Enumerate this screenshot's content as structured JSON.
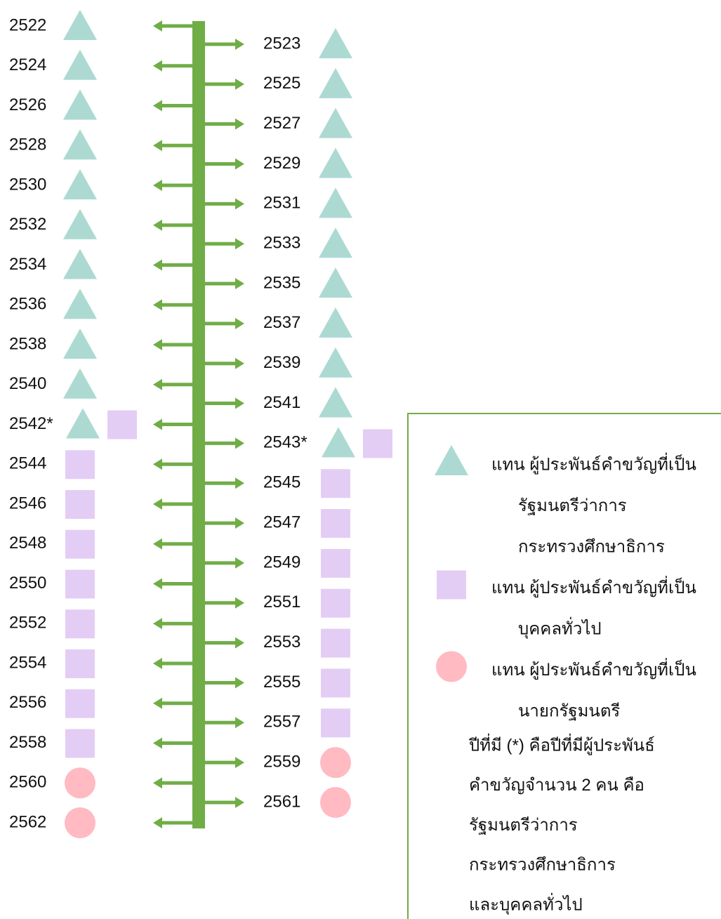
{
  "timeline": {
    "left": [
      {
        "year": "2522",
        "markers": [
          0
        ]
      },
      {
        "year": "2524",
        "markers": [
          0
        ]
      },
      {
        "year": "2526",
        "markers": [
          0
        ]
      },
      {
        "year": "2528",
        "markers": [
          0
        ]
      },
      {
        "year": "2530",
        "markers": [
          0
        ]
      },
      {
        "year": "2532",
        "markers": [
          0
        ]
      },
      {
        "year": "2534",
        "markers": [
          0
        ]
      },
      {
        "year": "2536",
        "markers": [
          0
        ]
      },
      {
        "year": "2538",
        "markers": [
          0
        ]
      },
      {
        "year": "2540",
        "markers": [
          0
        ]
      },
      {
        "year": "2542*",
        "markers": [
          0,
          1
        ]
      },
      {
        "year": "2544",
        "markers": [
          1
        ]
      },
      {
        "year": "2546",
        "markers": [
          1
        ]
      },
      {
        "year": "2548",
        "markers": [
          1
        ]
      },
      {
        "year": "2550",
        "markers": [
          1
        ]
      },
      {
        "year": "2552",
        "markers": [
          1
        ]
      },
      {
        "year": "2554",
        "markers": [
          1
        ]
      },
      {
        "year": "2556",
        "markers": [
          1
        ]
      },
      {
        "year": "2558",
        "markers": [
          1
        ]
      },
      {
        "year": "2560",
        "markers": [
          2
        ]
      },
      {
        "year": "2562",
        "markers": [
          2
        ]
      }
    ],
    "right": [
      {
        "year": "2523",
        "markers": [
          0
        ]
      },
      {
        "year": "2525",
        "markers": [
          0
        ]
      },
      {
        "year": "2527",
        "markers": [
          0
        ]
      },
      {
        "year": "2529",
        "markers": [
          0
        ]
      },
      {
        "year": "2531",
        "markers": [
          0
        ]
      },
      {
        "year": "2533",
        "markers": [
          0
        ]
      },
      {
        "year": "2535",
        "markers": [
          0
        ]
      },
      {
        "year": "2537",
        "markers": [
          0
        ]
      },
      {
        "year": "2539",
        "markers": [
          0
        ]
      },
      {
        "year": "2541",
        "markers": [
          0
        ]
      },
      {
        "year": "2543*",
        "markers": [
          0,
          1
        ]
      },
      {
        "year": "2545",
        "markers": [
          1
        ]
      },
      {
        "year": "2547",
        "markers": [
          1
        ]
      },
      {
        "year": "2549",
        "markers": [
          1
        ]
      },
      {
        "year": "2551",
        "markers": [
          1
        ]
      },
      {
        "year": "2553",
        "markers": [
          1
        ]
      },
      {
        "year": "2555",
        "markers": [
          1
        ]
      },
      {
        "year": "2557",
        "markers": [
          1
        ]
      },
      {
        "year": "2559",
        "markers": [
          2
        ]
      },
      {
        "year": "2561",
        "markers": [
          2
        ]
      }
    ]
  },
  "legend": {
    "items": [
      {
        "color": "#acdad2",
        "lines": [
          "แทน ผู้ประพันธ์คำขวัญที่เป็น",
          "รัฐมนตรีว่าการ",
          "กระทรวงศึกษาธิการ"
        ]
      },
      {
        "color": "#e3cdf5",
        "lines": [
          "แทน ผู้ประพันธ์คำขวัญที่เป็น",
          "บุคคลทั่วไป"
        ]
      },
      {
        "color": "#ffbac2",
        "lines": [
          "แทน ผู้ประพันธ์คำขวัญที่เป็น",
          "นายกรัฐมนตรี"
        ]
      }
    ],
    "note": [
      "ปีที่มี (*) คือปีที่มีผู้ประพันธ์",
      "คำขวัญจำนวน 2 คน คือ",
      "รัฐมนตรีว่าการ",
      "กระทรวงศึกษาธิการ",
      "และบุคคลทั่วไป"
    ]
  }
}
